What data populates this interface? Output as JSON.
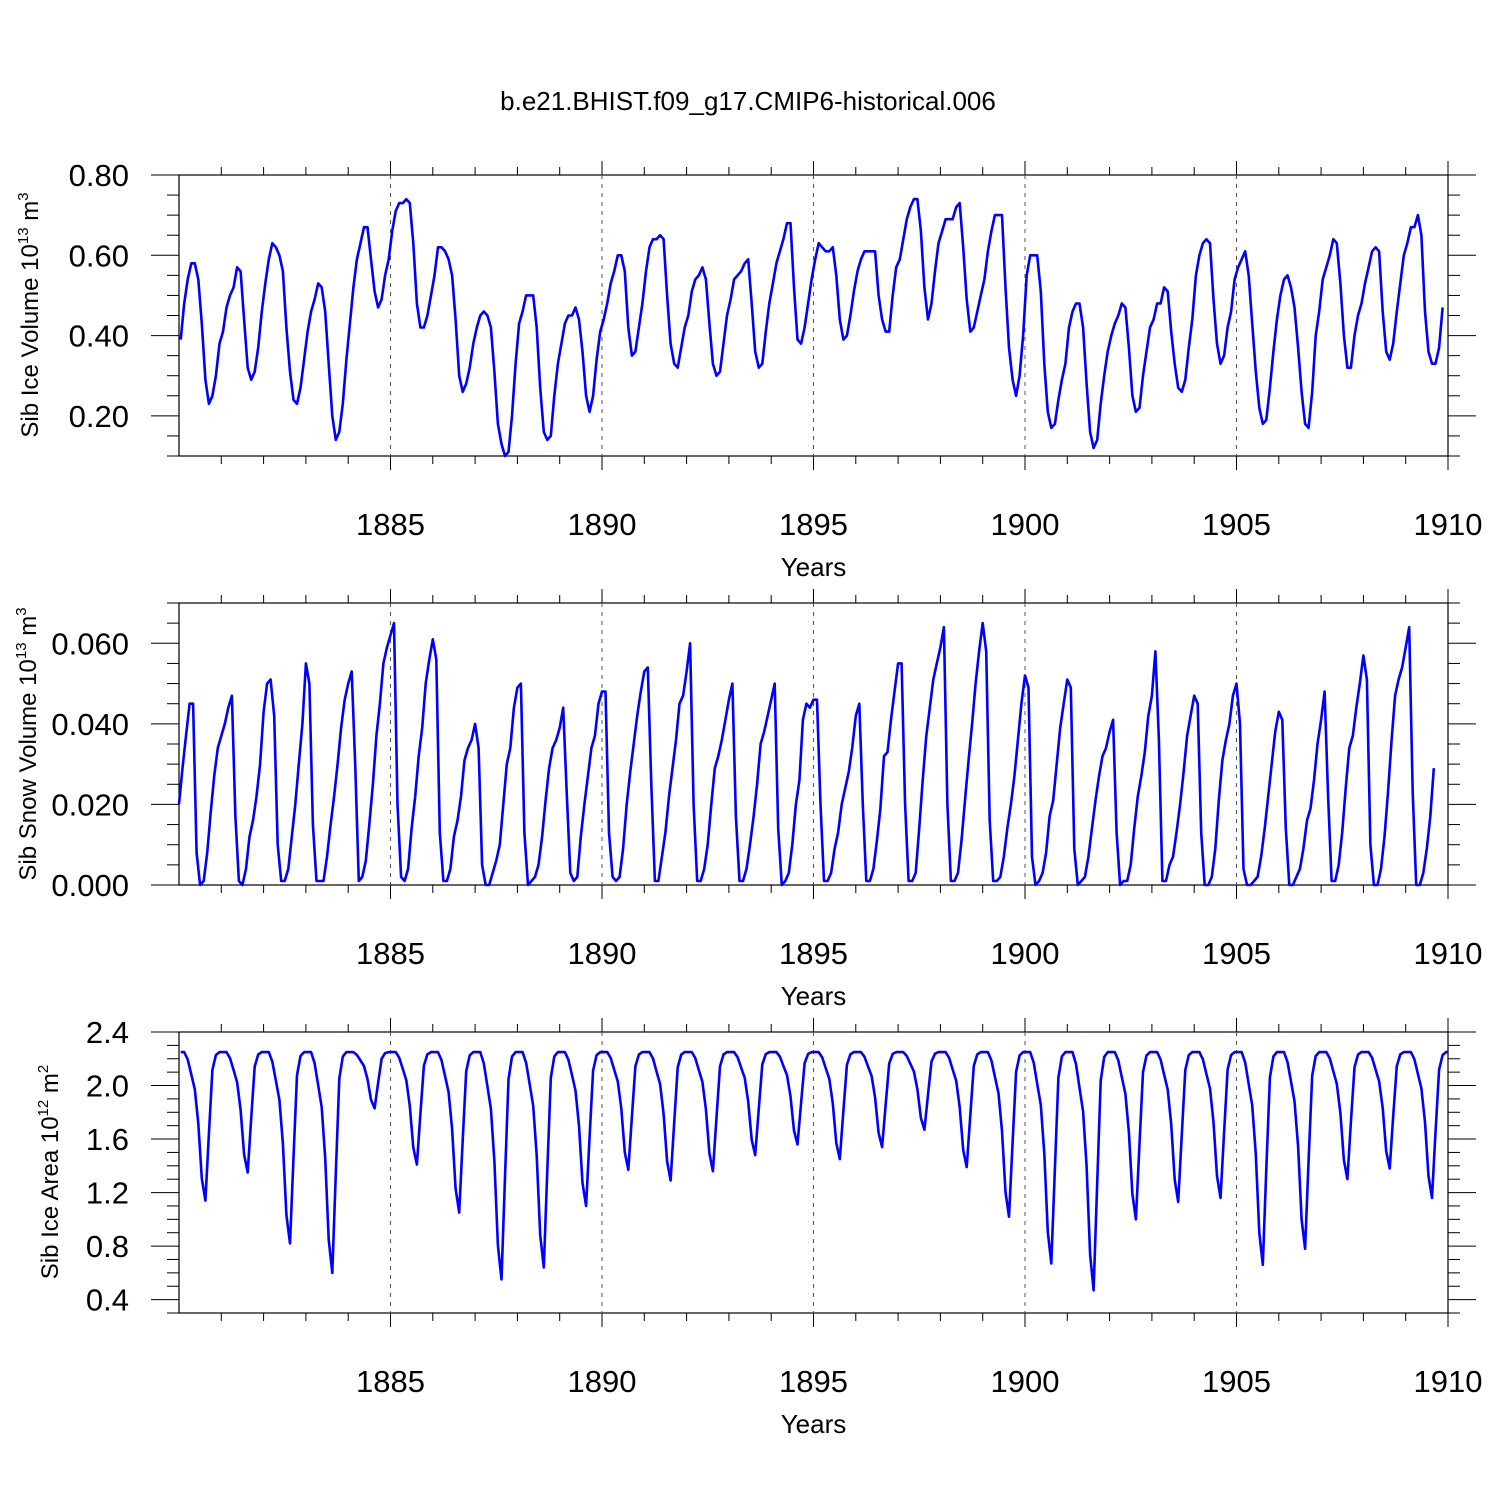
{
  "figure": {
    "title": "b.e21.BHIST.f09_g17.CMIP6-historical.006"
  },
  "chart_data": [
    {
      "type": "line",
      "title": "b.e21.BHIST.f09_g17.CMIP6-historical.006",
      "xlabel": "Years",
      "ylabel": {
        "base": "Sib Ice Volume 10",
        "sup": "13",
        "mid": " m",
        "sup2": "3"
      },
      "xlim": [
        1880,
        1910
      ],
      "ylim": [
        0.1,
        0.8
      ],
      "x_ticks": [
        1885,
        1890,
        1895,
        1900,
        1905,
        1910
      ],
      "x_tick_labels": [
        "1885",
        "1890",
        "1895",
        "1900",
        "1905",
        "1910"
      ],
      "y_ticks": [
        0.2,
        0.4,
        0.6,
        0.8
      ],
      "y_tick_labels": [
        "0.20",
        "0.40",
        "0.60",
        "0.80"
      ],
      "grid": "dashed vertical at major x ticks",
      "series": [
        {
          "name": "Sib Ice Volume",
          "color": "#0000ff",
          "x_start": 1880.04,
          "step": 0.08333,
          "values": [
            0.39,
            0.48,
            0.54,
            0.58,
            0.58,
            0.54,
            0.43,
            0.29,
            0.23,
            0.25,
            0.3,
            0.38,
            0.41,
            0.47,
            0.5,
            0.52,
            0.57,
            0.56,
            0.44,
            0.32,
            0.29,
            0.31,
            0.37,
            0.46,
            0.53,
            0.59,
            0.63,
            0.62,
            0.6,
            0.56,
            0.42,
            0.31,
            0.24,
            0.23,
            0.27,
            0.34,
            0.41,
            0.46,
            0.49,
            0.53,
            0.52,
            0.46,
            0.33,
            0.2,
            0.14,
            0.16,
            0.23,
            0.34,
            0.43,
            0.52,
            0.59,
            0.63,
            0.67,
            0.67,
            0.59,
            0.51,
            0.47,
            0.49,
            0.55,
            0.59,
            0.66,
            0.71,
            0.73,
            0.73,
            0.74,
            0.73,
            0.63,
            0.48,
            0.42,
            0.42,
            0.45,
            0.5,
            0.55,
            0.62,
            0.62,
            0.61,
            0.59,
            0.55,
            0.44,
            0.3,
            0.26,
            0.28,
            0.32,
            0.38,
            0.42,
            0.45,
            0.46,
            0.45,
            0.42,
            0.31,
            0.18,
            0.13,
            0.1,
            0.11,
            0.2,
            0.33,
            0.43,
            0.46,
            0.5,
            0.5,
            0.5,
            0.42,
            0.27,
            0.16,
            0.14,
            0.15,
            0.25,
            0.33,
            0.38,
            0.43,
            0.45,
            0.45,
            0.47,
            0.44,
            0.36,
            0.25,
            0.21,
            0.25,
            0.34,
            0.41,
            0.44,
            0.48,
            0.53,
            0.56,
            0.6,
            0.6,
            0.56,
            0.42,
            0.35,
            0.36,
            0.42,
            0.48,
            0.56,
            0.62,
            0.64,
            0.64,
            0.65,
            0.64,
            0.5,
            0.38,
            0.33,
            0.32,
            0.37,
            0.42,
            0.45,
            0.51,
            0.54,
            0.55,
            0.57,
            0.54,
            0.43,
            0.33,
            0.3,
            0.31,
            0.38,
            0.45,
            0.49,
            0.54,
            0.55,
            0.56,
            0.58,
            0.59,
            0.48,
            0.36,
            0.32,
            0.33,
            0.41,
            0.48,
            0.53,
            0.58,
            0.61,
            0.64,
            0.68,
            0.68,
            0.52,
            0.39,
            0.38,
            0.42,
            0.48,
            0.54,
            0.59,
            0.63,
            0.62,
            0.61,
            0.61,
            0.62,
            0.55,
            0.44,
            0.39,
            0.4,
            0.45,
            0.51,
            0.56,
            0.59,
            0.61,
            0.61,
            0.61,
            0.61,
            0.5,
            0.44,
            0.41,
            0.41,
            0.5,
            0.57,
            0.59,
            0.64,
            0.69,
            0.72,
            0.74,
            0.74,
            0.66,
            0.52,
            0.44,
            0.48,
            0.56,
            0.63,
            0.66,
            0.69,
            0.69,
            0.69,
            0.72,
            0.73,
            0.62,
            0.49,
            0.41,
            0.42,
            0.46,
            0.5,
            0.54,
            0.61,
            0.66,
            0.7,
            0.7,
            0.7,
            0.52,
            0.37,
            0.29,
            0.25,
            0.3,
            0.4,
            0.55,
            0.6,
            0.6,
            0.6,
            0.51,
            0.33,
            0.21,
            0.17,
            0.18,
            0.24,
            0.29,
            0.33,
            0.42,
            0.46,
            0.48,
            0.48,
            0.42,
            0.28,
            0.16,
            0.12,
            0.14,
            0.23,
            0.3,
            0.36,
            0.4,
            0.43,
            0.45,
            0.48,
            0.47,
            0.37,
            0.25,
            0.21,
            0.22,
            0.3,
            0.36,
            0.42,
            0.44,
            0.48,
            0.48,
            0.52,
            0.51,
            0.41,
            0.33,
            0.27,
            0.26,
            0.29,
            0.37,
            0.44,
            0.55,
            0.6,
            0.63,
            0.64,
            0.63,
            0.49,
            0.38,
            0.33,
            0.35,
            0.42,
            0.46,
            0.54,
            0.57,
            0.59,
            0.61,
            0.55,
            0.43,
            0.31,
            0.22,
            0.18,
            0.19,
            0.27,
            0.36,
            0.44,
            0.5,
            0.54,
            0.55,
            0.52,
            0.47,
            0.37,
            0.26,
            0.18,
            0.17,
            0.26,
            0.4,
            0.46,
            0.54,
            0.57,
            0.6,
            0.64,
            0.63,
            0.53,
            0.4,
            0.32,
            0.32,
            0.4,
            0.45,
            0.48,
            0.53,
            0.57,
            0.61,
            0.62,
            0.61,
            0.46,
            0.36,
            0.34,
            0.38,
            0.46,
            0.53,
            0.6,
            0.63,
            0.67,
            0.67,
            0.7,
            0.65,
            0.46,
            0.36,
            0.33,
            0.33,
            0.37,
            0.47
          ]
        }
      ]
    },
    {
      "type": "line",
      "xlabel": "Years",
      "ylabel": {
        "base": "Sib Snow Volume 10",
        "sup": "13",
        "mid": " m",
        "sup2": "3"
      },
      "xlim": [
        1880,
        1910
      ],
      "ylim": [
        0.0,
        0.07
      ],
      "x_ticks": [
        1885,
        1890,
        1895,
        1900,
        1905,
        1910
      ],
      "x_tick_labels": [
        "1885",
        "1890",
        "1895",
        "1900",
        "1905",
        "1910"
      ],
      "y_ticks": [
        0.0,
        0.02,
        0.04,
        0.06
      ],
      "y_tick_labels": [
        "0.000",
        "0.020",
        "0.040",
        "0.060"
      ],
      "grid": "dashed vertical at major x ticks",
      "series": [
        {
          "name": "Sib Snow Volume",
          "color": "#0000ff",
          "x_start": 1880.0,
          "step": 0.08333,
          "values": [
            0.02,
            0.029,
            0.037,
            0.045,
            0.045,
            0.008,
            0.0,
            0.001,
            0.008,
            0.018,
            0.027,
            0.034,
            0.037,
            0.04,
            0.044,
            0.047,
            0.017,
            0.001,
            0.0,
            0.004,
            0.012,
            0.016,
            0.022,
            0.03,
            0.043,
            0.05,
            0.051,
            0.042,
            0.01,
            0.001,
            0.001,
            0.004,
            0.012,
            0.02,
            0.03,
            0.04,
            0.055,
            0.05,
            0.015,
            0.001,
            0.001,
            0.001,
            0.007,
            0.015,
            0.022,
            0.03,
            0.039,
            0.046,
            0.05,
            0.053,
            0.03,
            0.001,
            0.002,
            0.006,
            0.015,
            0.025,
            0.037,
            0.045,
            0.055,
            0.059,
            0.062,
            0.065,
            0.02,
            0.002,
            0.001,
            0.004,
            0.014,
            0.022,
            0.032,
            0.039,
            0.05,
            0.056,
            0.061,
            0.056,
            0.013,
            0.001,
            0.001,
            0.004,
            0.012,
            0.016,
            0.022,
            0.031,
            0.034,
            0.036,
            0.04,
            0.034,
            0.005,
            0.0,
            0.0,
            0.003,
            0.006,
            0.01,
            0.02,
            0.03,
            0.034,
            0.044,
            0.049,
            0.05,
            0.013,
            0.0,
            0.001,
            0.002,
            0.005,
            0.012,
            0.021,
            0.029,
            0.034,
            0.036,
            0.039,
            0.044,
            0.023,
            0.003,
            0.001,
            0.002,
            0.012,
            0.02,
            0.027,
            0.034,
            0.037,
            0.045,
            0.048,
            0.048,
            0.013,
            0.002,
            0.001,
            0.002,
            0.009,
            0.02,
            0.028,
            0.035,
            0.042,
            0.048,
            0.053,
            0.054,
            0.025,
            0.001,
            0.001,
            0.007,
            0.013,
            0.022,
            0.029,
            0.036,
            0.045,
            0.047,
            0.053,
            0.06,
            0.02,
            0.001,
            0.001,
            0.004,
            0.01,
            0.02,
            0.029,
            0.032,
            0.036,
            0.041,
            0.046,
            0.05,
            0.017,
            0.001,
            0.001,
            0.004,
            0.01,
            0.017,
            0.025,
            0.035,
            0.038,
            0.042,
            0.046,
            0.05,
            0.014,
            0.0,
            0.001,
            0.003,
            0.01,
            0.02,
            0.026,
            0.041,
            0.045,
            0.044,
            0.046,
            0.046,
            0.02,
            0.001,
            0.001,
            0.003,
            0.009,
            0.013,
            0.02,
            0.024,
            0.028,
            0.034,
            0.042,
            0.045,
            0.02,
            0.001,
            0.001,
            0.004,
            0.011,
            0.019,
            0.032,
            0.033,
            0.041,
            0.048,
            0.055,
            0.055,
            0.02,
            0.001,
            0.001,
            0.003,
            0.014,
            0.026,
            0.037,
            0.044,
            0.051,
            0.055,
            0.059,
            0.064,
            0.02,
            0.001,
            0.001,
            0.003,
            0.011,
            0.021,
            0.031,
            0.04,
            0.05,
            0.058,
            0.065,
            0.058,
            0.016,
            0.001,
            0.001,
            0.002,
            0.007,
            0.014,
            0.02,
            0.027,
            0.036,
            0.045,
            0.052,
            0.049,
            0.007,
            0.0,
            0.001,
            0.003,
            0.008,
            0.017,
            0.021,
            0.03,
            0.039,
            0.045,
            0.051,
            0.049,
            0.009,
            0.0,
            0.001,
            0.002,
            0.007,
            0.014,
            0.021,
            0.027,
            0.032,
            0.034,
            0.038,
            0.041,
            0.013,
            0.0,
            0.001,
            0.001,
            0.005,
            0.014,
            0.022,
            0.027,
            0.033,
            0.042,
            0.047,
            0.058,
            0.036,
            0.001,
            0.001,
            0.005,
            0.007,
            0.013,
            0.02,
            0.028,
            0.037,
            0.042,
            0.047,
            0.045,
            0.013,
            0.0,
            0.0,
            0.002,
            0.009,
            0.021,
            0.031,
            0.036,
            0.04,
            0.047,
            0.05,
            0.04,
            0.004,
            0.0,
            0.0,
            0.001,
            0.002,
            0.007,
            0.014,
            0.022,
            0.03,
            0.038,
            0.043,
            0.041,
            0.014,
            0.0,
            0.0,
            0.002,
            0.004,
            0.009,
            0.016,
            0.019,
            0.026,
            0.035,
            0.041,
            0.048,
            0.022,
            0.001,
            0.001,
            0.005,
            0.013,
            0.024,
            0.034,
            0.037,
            0.044,
            0.05,
            0.057,
            0.051,
            0.01,
            0.0,
            0.0,
            0.004,
            0.012,
            0.023,
            0.036,
            0.047,
            0.051,
            0.054,
            0.059,
            0.064,
            0.023,
            0.0,
            0.0,
            0.003,
            0.009,
            0.017,
            0.029
          ]
        }
      ]
    },
    {
      "type": "line",
      "xlabel": "Years",
      "ylabel": {
        "base": "Sib Ice Area 10",
        "sup": "12",
        "mid": " m",
        "sup2": "2"
      },
      "xlim": [
        1880,
        1910
      ],
      "ylim": [
        0.3,
        2.4
      ],
      "x_ticks": [
        1885,
        1890,
        1895,
        1900,
        1905,
        1910
      ],
      "x_tick_labels": [
        "1885",
        "1890",
        "1895",
        "1900",
        "1905",
        "1910"
      ],
      "y_ticks": [
        0.4,
        0.8,
        1.2,
        1.6,
        2.0,
        2.4
      ],
      "y_tick_labels": [
        "0.4",
        "0.8",
        "1.2",
        "1.6",
        "2.0",
        "2.4"
      ],
      "grid": "dashed vertical at major x ticks",
      "series": [
        {
          "name": "Sib Ice Area",
          "color": "#0000ff",
          "x_start": 1880.04,
          "step": 0.08333,
          "min_values": [
            1.14,
            1.35,
            0.82,
            0.6,
            1.83,
            1.41,
            1.05,
            0.55,
            0.64,
            1.1,
            1.37,
            1.29,
            1.36,
            1.48,
            1.56,
            1.45,
            1.54,
            1.67,
            1.39,
            1.02,
            0.67,
            0.47,
            1.0,
            1.13,
            1.16,
            0.66,
            0.78,
            1.3,
            1.38,
            1.16
          ],
          "note": "Each year: ~2.25 plateau from late autumn to spring, dropping to the listed annual minimum in late summer."
        }
      ]
    }
  ]
}
